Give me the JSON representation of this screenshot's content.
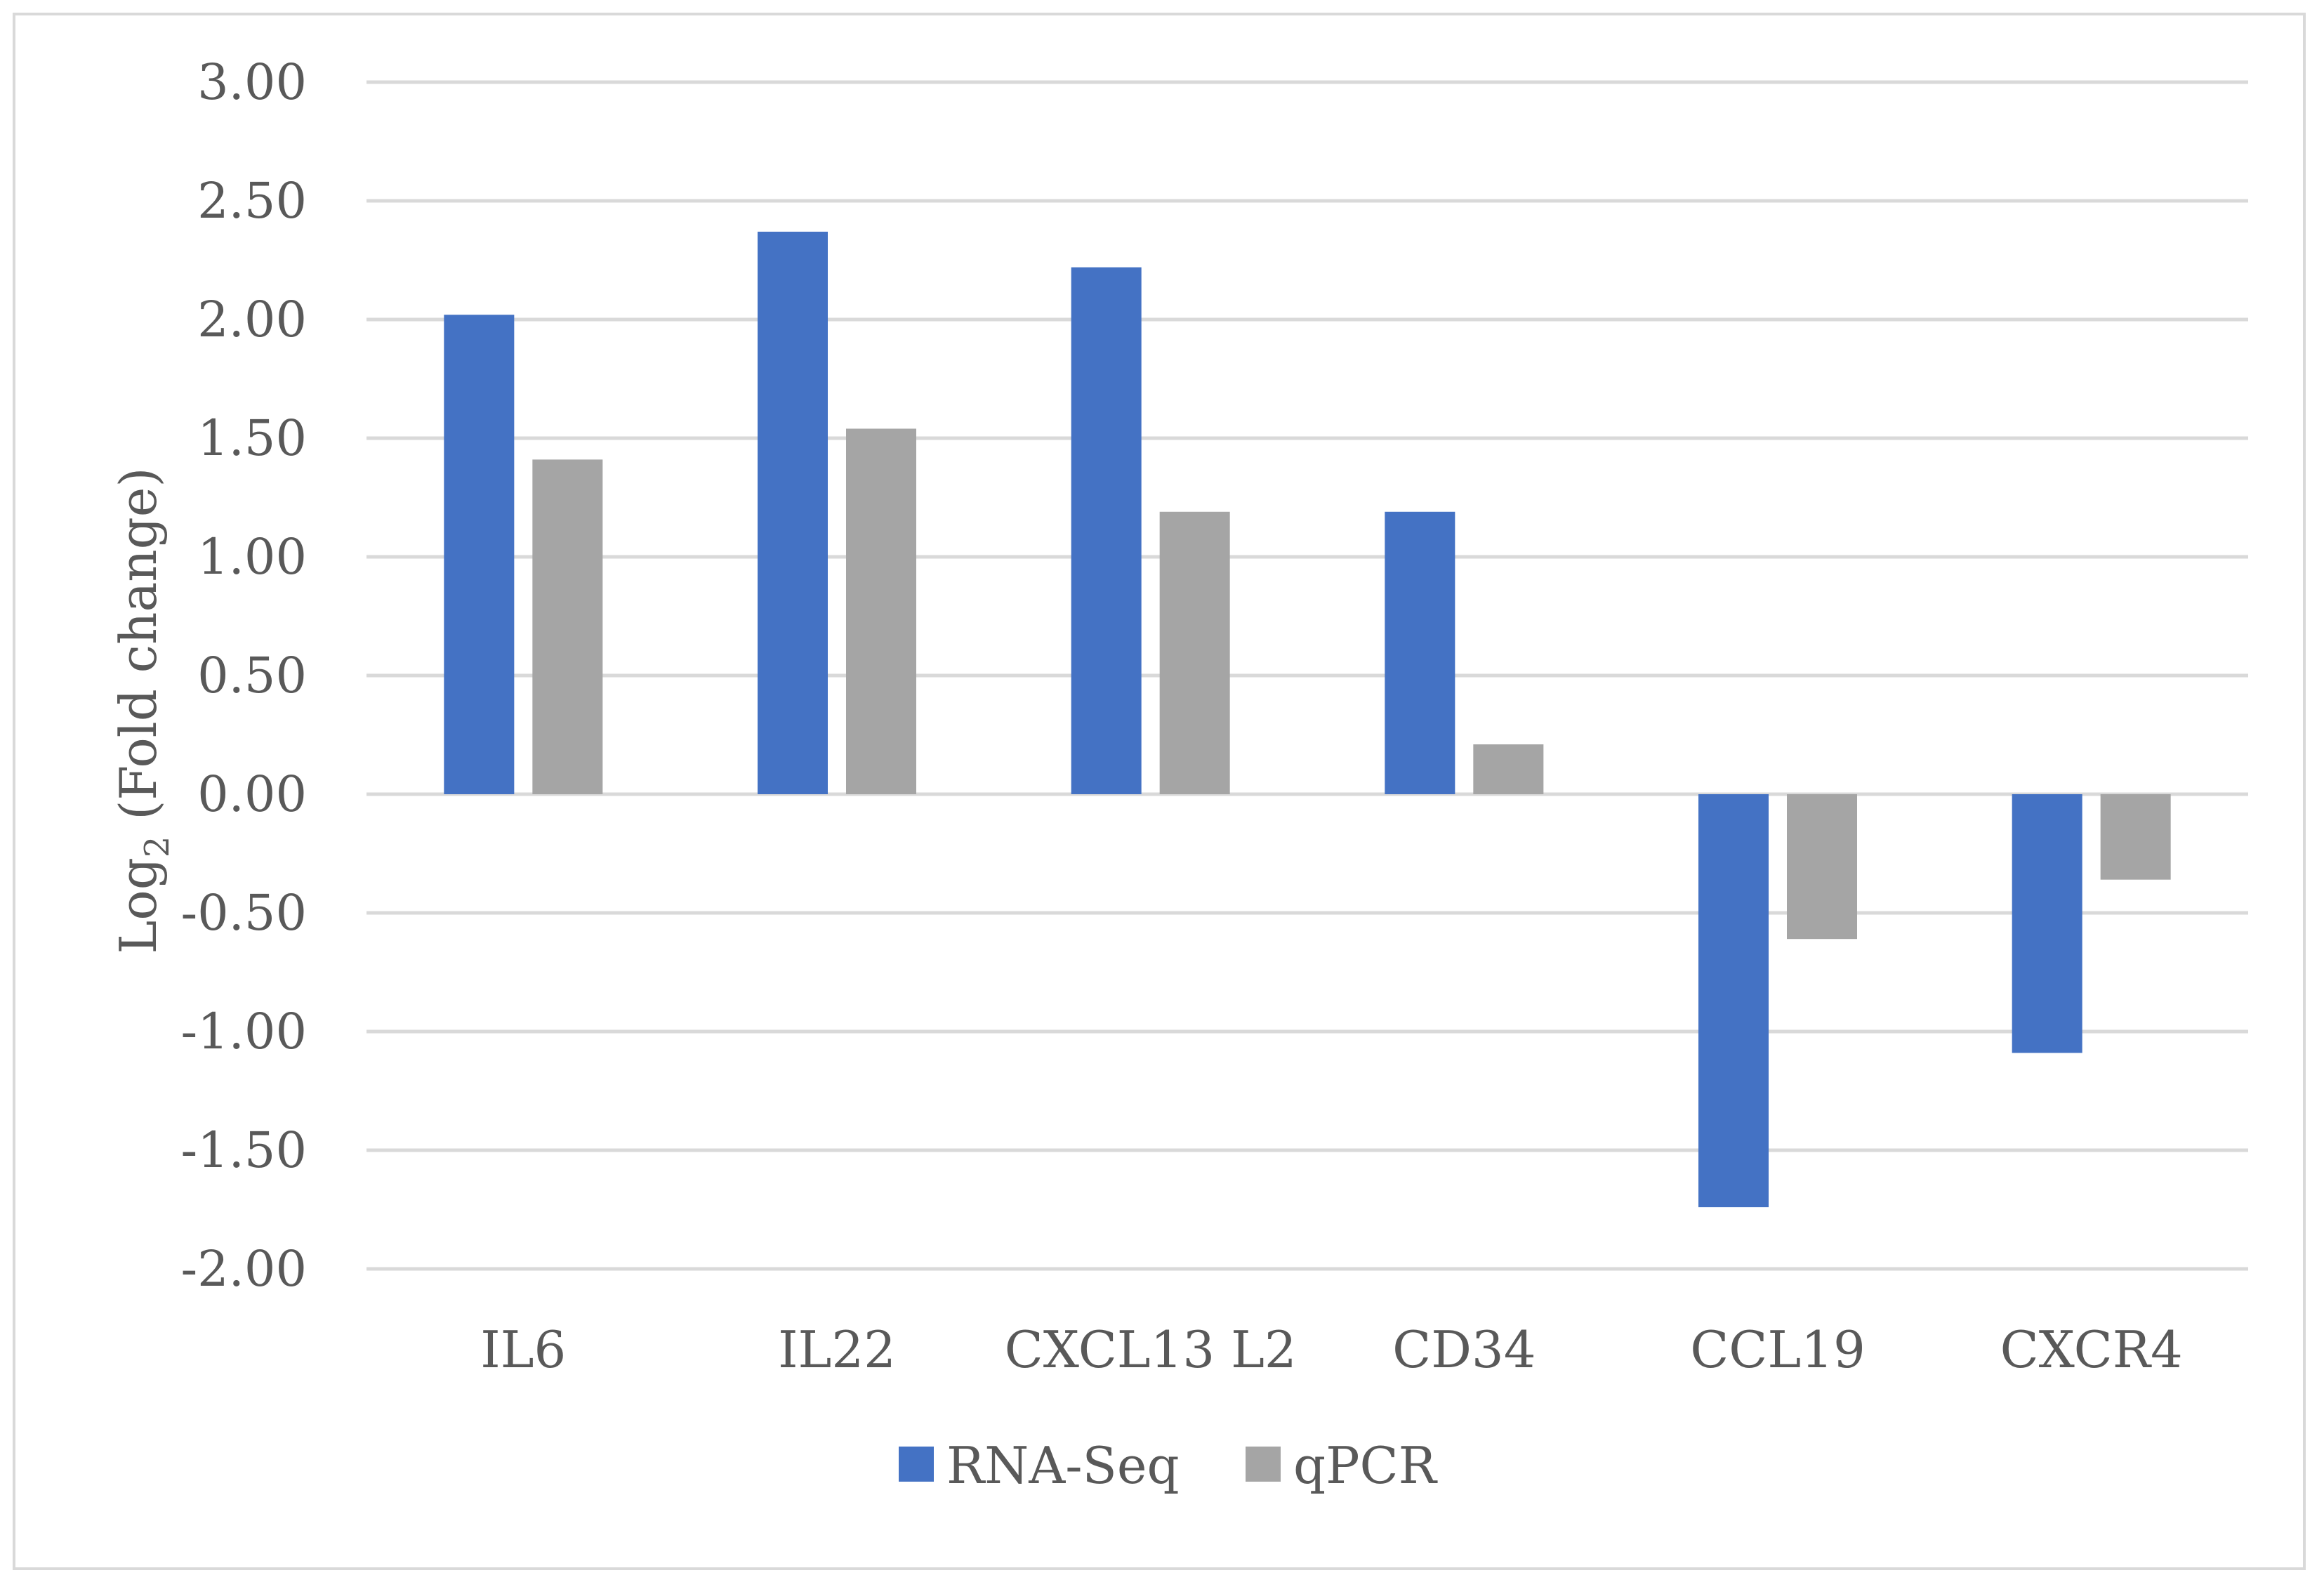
{
  "chart_data": {
    "type": "bar",
    "title": "",
    "xlabel": "",
    "ylabel": {
      "main": "Log",
      "subscript": "2",
      "rest": " (Fold change)"
    },
    "categories": [
      "IL6",
      "IL22",
      "CXCL13 L2",
      "CD34",
      "CCL19",
      "CXCR4"
    ],
    "series": [
      {
        "name": "RNA-Seq",
        "color": "#4472c4",
        "values": [
          2.02,
          2.37,
          2.22,
          1.19,
          -1.74,
          -1.09
        ]
      },
      {
        "name": "qPCR",
        "color": "#a5a5a5",
        "values": [
          1.41,
          1.54,
          1.19,
          0.21,
          -0.61,
          -0.36
        ]
      }
    ],
    "ylim": [
      -2.0,
      3.0
    ],
    "yticks": [
      3.0,
      2.5,
      2.0,
      1.5,
      1.0,
      0.5,
      0.0,
      -0.5,
      -1.0,
      -1.5,
      -2.0
    ],
    "ytick_labels": [
      "3.00",
      "2.50",
      "2.00",
      "1.50",
      "1.00",
      "0.50",
      "0.00",
      "-0.50",
      "-1.00",
      "-1.50",
      "-2.00"
    ],
    "grid": true,
    "legend_position": "bottom",
    "gridline_color": "#d9d9d9"
  }
}
